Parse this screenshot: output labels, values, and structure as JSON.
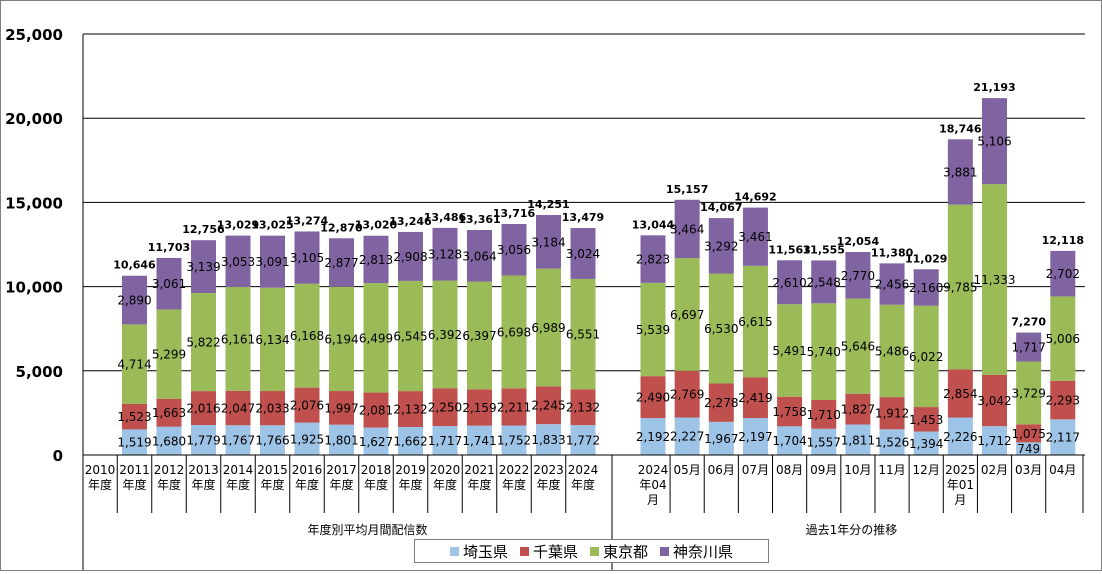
{
  "chart_data": {
    "type": "bar",
    "stacked": true,
    "ylim": [
      0,
      25000
    ],
    "yticks": [
      "0",
      "5,000",
      "10,000",
      "15,000",
      "20,000",
      "25,000"
    ],
    "grid": true,
    "legend_position": "bottom",
    "categories": [
      "2010\n年度",
      "2011\n年度",
      "2012\n年度",
      "2013\n年度",
      "2014\n年度",
      "2015\n年度",
      "2016\n年度",
      "2017\n年度",
      "2018\n年度",
      "2019\n年度",
      "2020\n年度",
      "2021\n年度",
      "2022\n年度",
      "2023\n年度",
      "2024\n年度",
      "2024\n年04\n月",
      "05月",
      "06月",
      "07月",
      "08月",
      "09月",
      "10月",
      "11月",
      "12月",
      "2025\n年01\n月",
      "02月",
      "03月",
      "04月"
    ],
    "groups": [
      {
        "label": "年度別平均月間配信数",
        "count": 15
      },
      {
        "label": "過去1年分の推移",
        "count": 13
      }
    ],
    "series": [
      {
        "name": "埼玉県",
        "color": "#9dc3e6",
        "values": [
          null,
          1519,
          1680,
          1779,
          1767,
          1766,
          1925,
          1801,
          1627,
          1662,
          1717,
          1741,
          1752,
          1833,
          1772,
          2192,
          2227,
          1967,
          2197,
          1704,
          1557,
          1811,
          1526,
          1394,
          2226,
          1712,
          749,
          2117
        ],
        "labels": [
          "",
          "1,519",
          "1,680",
          "1,779",
          "1,767",
          "1,766",
          "1,925",
          "1,801",
          "1,627",
          "1,662",
          "1,717",
          "1,741",
          "1,752",
          "1,833",
          "1,772",
          "2,192",
          "2,227",
          "1,967",
          "2,197",
          "1,704",
          "1,557",
          "1,811",
          "1,526",
          "1,394",
          "2,226",
          "1,712",
          "749",
          "2,117"
        ]
      },
      {
        "name": "千葉県",
        "color": "#c0504d",
        "values": [
          null,
          1523,
          1663,
          2016,
          2047,
          2033,
          2076,
          1997,
          2081,
          2132,
          2250,
          2159,
          2211,
          2245,
          2132,
          2490,
          2769,
          2278,
          2419,
          1758,
          1710,
          1827,
          1912,
          1453,
          2854,
          3042,
          1075,
          2293
        ],
        "labels": [
          "",
          "1,523",
          "1,663",
          "2,016",
          "2,047",
          "2,033",
          "2,076",
          "1,997",
          "2,081",
          "2,132",
          "2,250",
          "2,159",
          "2,211",
          "2,245",
          "2,132",
          "2,490",
          "2,769",
          "2,278",
          "2,419",
          "1,758",
          "1,710",
          "1,827",
          "1,912",
          "1,453",
          "2,854",
          "3,042",
          "1,075",
          "2,293"
        ]
      },
      {
        "name": "東京都",
        "color": "#9bbb59",
        "values": [
          null,
          4714,
          5299,
          5822,
          6161,
          6134,
          6168,
          6194,
          6499,
          6545,
          6392,
          6397,
          6698,
          6989,
          6551,
          5539,
          6697,
          6530,
          6615,
          5491,
          5740,
          5646,
          5486,
          6022,
          9785,
          11333,
          3729,
          5006
        ],
        "labels": [
          "",
          "4,714",
          "5,299",
          "5,822",
          "6,161",
          "6,134",
          "6,168",
          "6,194",
          "6,499",
          "6,545",
          "6,392",
          "6,397",
          "6,698",
          "6,989",
          "6,551",
          "5,539",
          "6,697",
          "6,530",
          "6,615",
          "5,491",
          "5,740",
          "5,646",
          "5,486",
          "6,022",
          "9,785",
          "11,333",
          "3,729",
          "5,006"
        ]
      },
      {
        "name": "神奈川県",
        "color": "#8064a2",
        "values": [
          null,
          2890,
          3061,
          3139,
          3053,
          3091,
          3105,
          2877,
          2813,
          2908,
          3128,
          3064,
          3056,
          3184,
          3024,
          2823,
          3464,
          3292,
          3461,
          2610,
          2548,
          2770,
          2456,
          2160,
          3881,
          5106,
          1717,
          2702
        ],
        "labels": [
          "",
          "2,890",
          "3,061",
          "3,139",
          "3,053",
          "3,091",
          "3,105",
          "2,877",
          "2,813",
          "2,908",
          "3,128",
          "3,064",
          "3,056",
          "3,184",
          "3,024",
          "2,823",
          "3,464",
          "3,292",
          "3,461",
          "2,610",
          "2,548",
          "2,770",
          "2,456",
          "2,160",
          "3,881",
          "5,106",
          "1,717",
          "2,702"
        ]
      }
    ],
    "totals": [
      null,
      10646,
      11703,
      12756,
      13029,
      13025,
      13274,
      12870,
      13020,
      13246,
      13486,
      13361,
      13716,
      14251,
      13479,
      13044,
      15157,
      14067,
      14692,
      11563,
      11555,
      12054,
      11380,
      11029,
      18746,
      21193,
      7270,
      12118
    ],
    "total_labels": [
      "",
      "10,646",
      "11,703",
      "12,756",
      "13,029",
      "13,025",
      "13,274",
      "12,870",
      "13,020",
      "13,246",
      "13,486",
      "13,361",
      "13,716",
      "14,251",
      "13,479",
      "13,044",
      "15,157",
      "14,067",
      "14,692",
      "11,563",
      "11,555",
      "12,054",
      "11,380",
      "11,029",
      "18,746",
      "21,193",
      "7,270",
      "12,118"
    ]
  }
}
